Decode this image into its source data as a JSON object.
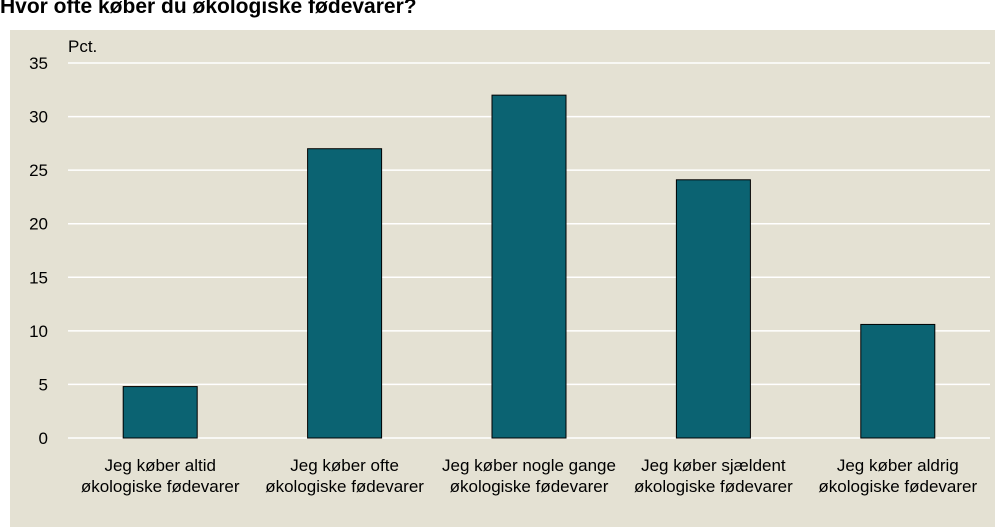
{
  "chart_data": {
    "type": "bar",
    "title": "Hvor ofte køber du økologiske fødevarer?",
    "y_axis_label": "Pct.",
    "categories": [
      "Jeg køber altid økologiske fødevarer",
      "Jeg køber ofte økologiske fødevarer",
      "Jeg køber nogle gange økologiske fødevarer",
      "Jeg køber sjældent økologiske fødevarer",
      "Jeg køber aldrig økologiske fødevarer"
    ],
    "values": [
      4.8,
      27,
      32,
      24.1,
      10.6
    ],
    "color": "#0b6372",
    "ylim": [
      0,
      35
    ],
    "yticks": [
      0,
      5,
      10,
      15,
      20,
      25,
      30,
      35
    ],
    "grid": true
  }
}
